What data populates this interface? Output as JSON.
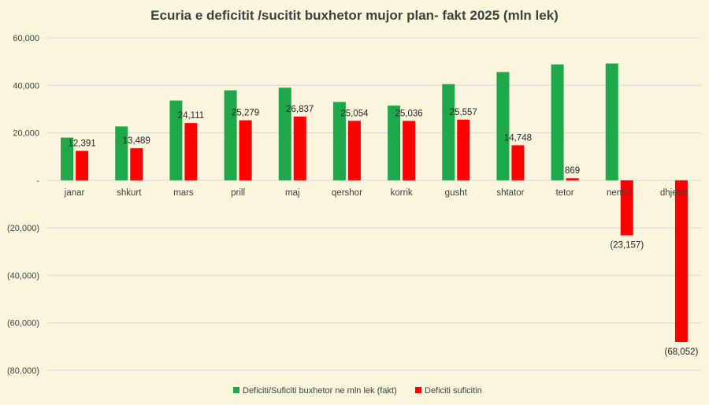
{
  "chart_data": {
    "type": "bar",
    "title": "Ecuria e deficitit /sucitit buxhetor mujor plan- fakt 2025 (mln lek)",
    "categories": [
      "janar",
      "shkurt",
      "mars",
      "prill",
      "maj",
      "qershor",
      "korrik",
      "gusht",
      "shtator",
      "tetor",
      "nentor",
      "dhjetor"
    ],
    "ylim": [
      -80000,
      60000
    ],
    "yticks": [
      60000,
      40000,
      20000,
      0,
      -20000,
      -40000,
      -60000,
      -80000
    ],
    "ytick_labels": [
      "60,000",
      "40,000",
      "20,000",
      "-",
      "(20,000)",
      "(40,000)",
      "(60,000)",
      "(80,000)"
    ],
    "grid": true,
    "legend_position": "bottom",
    "series": [
      {
        "name": "Deficiti/Suficiti buxhetor ne mln lek (fakt)",
        "color": "#1fa84a",
        "values": [
          18000,
          22700,
          33600,
          37900,
          39000,
          33000,
          31500,
          40500,
          45600,
          48800,
          49200,
          null
        ],
        "labels": null
      },
      {
        "name": "Deficiti suficitin",
        "color": "#ff0000",
        "values": [
          12391,
          13489,
          24111,
          25279,
          26837,
          25054,
          25036,
          25557,
          14748,
          869,
          -23157,
          -68052
        ],
        "labels": [
          "12,391",
          "13,489",
          "24,111",
          "25,279",
          "26,837",
          "25,054",
          "25,036",
          "25,557",
          "14,748",
          "869",
          "(23,157)",
          "(68,052)"
        ]
      }
    ]
  }
}
